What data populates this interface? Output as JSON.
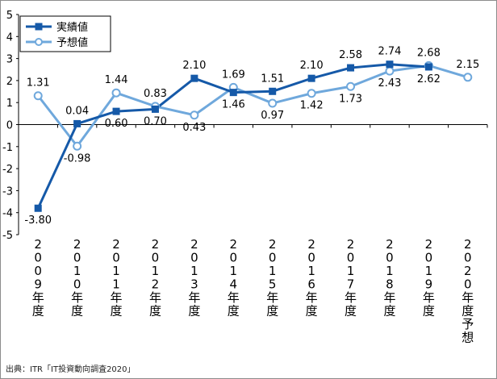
{
  "chart_data": {
    "type": "line",
    "categories": [
      "2009年度",
      "2010年度",
      "2011年度",
      "2012年度",
      "2013年度",
      "2014年度",
      "2015年度",
      "2016年度",
      "2017年度",
      "2018年度",
      "2019年度",
      "2020年度予想"
    ],
    "ylim": [
      -5,
      5
    ],
    "yticks": [
      "5",
      "4",
      "3",
      "2",
      "1",
      "0",
      "-1",
      "-2",
      "-3",
      "-4",
      "-5"
    ],
    "grid": false,
    "legend_position": "top-left",
    "series": [
      {
        "name": "実績値",
        "color": "#1559a8",
        "marker": "square-filled",
        "values": [
          -3.8,
          0.04,
          0.6,
          0.7,
          2.1,
          1.46,
          1.51,
          2.1,
          2.58,
          2.74,
          2.62,
          null
        ],
        "labels": [
          "-3.80",
          "0.04",
          "0.60",
          "0.70",
          "2.10",
          "1.46",
          "1.51",
          "2.10",
          "2.58",
          "2.74",
          "2.62",
          ""
        ]
      },
      {
        "name": "予想値",
        "color": "#6fa8dc",
        "marker": "circle-open",
        "values": [
          1.31,
          -0.98,
          1.44,
          0.83,
          0.43,
          1.69,
          0.97,
          1.42,
          1.73,
          2.43,
          2.68,
          2.15
        ],
        "labels": [
          "1.31",
          "-0.98",
          "1.44",
          "0.83",
          "0.43",
          "1.69",
          "0.97",
          "1.42",
          "1.73",
          "2.43",
          "2.68",
          "2.15"
        ]
      }
    ]
  },
  "source_note": "出典：ITR「IT投資動向調査2020」"
}
